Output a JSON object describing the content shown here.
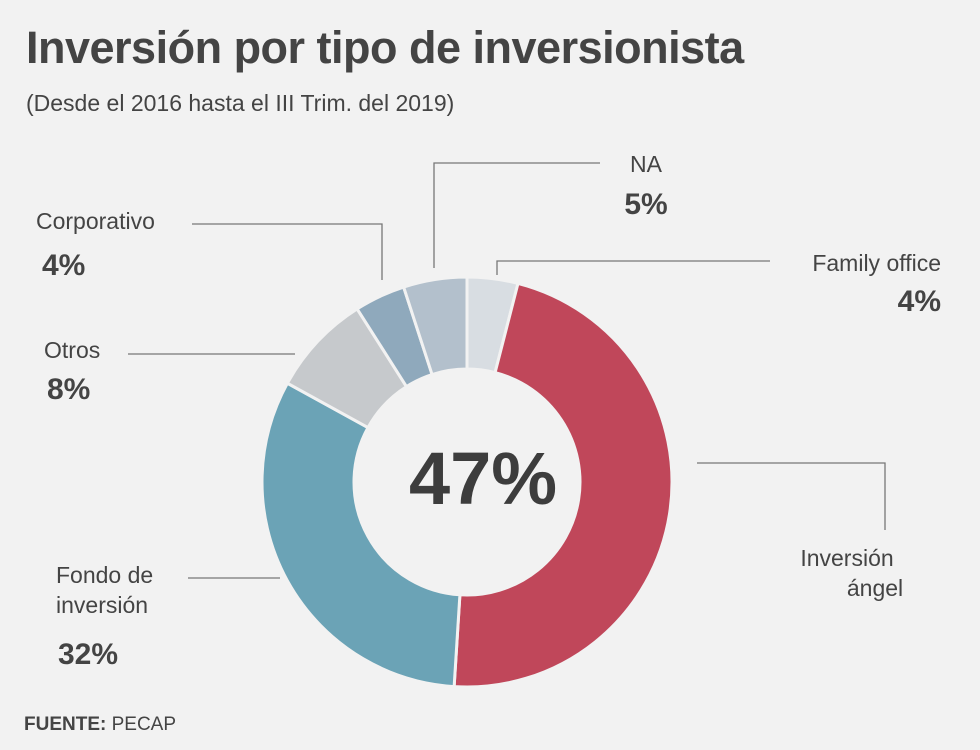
{
  "title": "Inversión por tipo de inversionista",
  "subtitle": "(Desde el 2016 hasta el III Trim. del 2019)",
  "source_label": "FUENTE:",
  "source_value": "PECAP",
  "chart_data": {
    "type": "pie",
    "donut": true,
    "center_label": "47%",
    "slices": [
      {
        "name": "Family office",
        "value": 4,
        "pct_label": "4%",
        "color": "#d8dde2"
      },
      {
        "name": "Inversión ángel",
        "name_lines": [
          "Inversión",
          "ángel"
        ],
        "value": 47,
        "pct_label": "",
        "color": "#c0475a"
      },
      {
        "name": "Fondo de inversión",
        "name_lines": [
          "Fondo de",
          "inversión"
        ],
        "value": 32,
        "pct_label": "32%",
        "color": "#6ba3b6"
      },
      {
        "name": "Otros",
        "value": 8,
        "pct_label": "8%",
        "color": "#c6c9cc"
      },
      {
        "name": "Corporativo",
        "value": 4,
        "pct_label": "4%",
        "color": "#8fa9bc"
      },
      {
        "name": "NA",
        "value": 5,
        "pct_label": "5%",
        "color": "#b3c0cc"
      }
    ]
  }
}
